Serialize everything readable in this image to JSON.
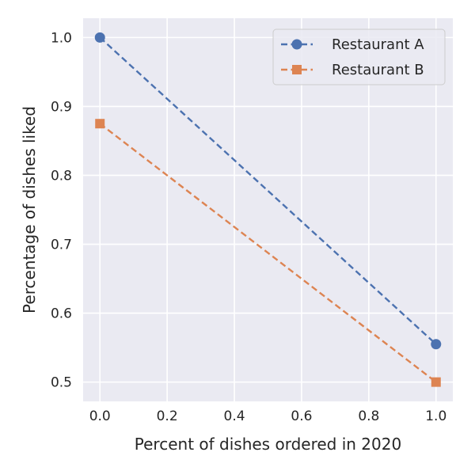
{
  "chart_data": {
    "type": "line",
    "title": "",
    "xlabel": "Percent of dishes ordered in 2020",
    "ylabel": "Percentage of dishes liked",
    "x": [
      0.0,
      1.0
    ],
    "xlim": [
      -0.05,
      1.05
    ],
    "ylim": [
      0.472,
      1.028
    ],
    "xticks": [
      0.0,
      0.2,
      0.4,
      0.6,
      0.8,
      1.0
    ],
    "yticks": [
      0.5,
      0.6,
      0.7,
      0.8,
      0.9,
      1.0
    ],
    "xtick_labels": [
      "0.0",
      "0.2",
      "0.4",
      "0.6",
      "0.8",
      "1.0"
    ],
    "ytick_labels": [
      "0.5",
      "0.6",
      "0.7",
      "0.8",
      "0.9",
      "1.0"
    ],
    "grid": true,
    "legend_position": "top-right",
    "series": [
      {
        "name": "Restaurant A",
        "values": [
          1.0,
          0.555
        ],
        "color": "#4c72b0",
        "marker": "circle",
        "linestyle": "dashed"
      },
      {
        "name": "Restaurant B",
        "values": [
          0.875,
          0.5
        ],
        "color": "#dd8452",
        "marker": "square",
        "linestyle": "dashed"
      }
    ]
  }
}
